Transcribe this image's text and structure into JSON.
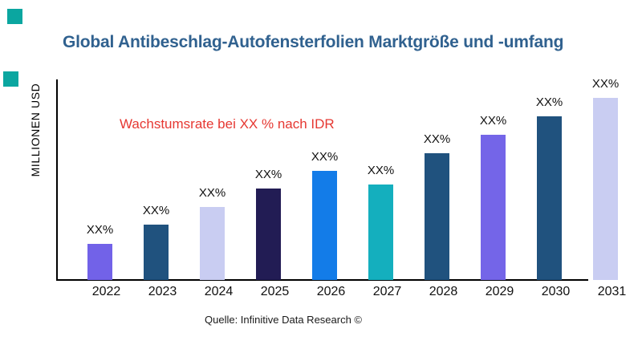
{
  "page": {
    "title": "Global Antibeschlag-Autofensterfolien Marktgröße und -umfang",
    "title_color": "#30618f",
    "annotation": "Wachstumsrate bei XX % nach IDR",
    "annotation_color": "#e63832",
    "y_axis_label": "MILLIONEN USD",
    "source": "Quelle: Infinitive Data Research ©",
    "brand_square_color": "#0ba6a0",
    "axis_color": "#000000",
    "background_color": "#ffffff"
  },
  "chart_data": {
    "type": "bar",
    "title": "Global Antibeschlag-Autofensterfolien Marktgröße und -umfang",
    "xlabel": "",
    "ylabel": "MILLIONEN USD",
    "categories": [
      "2022",
      "2023",
      "2024",
      "2025",
      "2026",
      "2027",
      "2028",
      "2029",
      "2030",
      "2031"
    ],
    "series": [
      {
        "name": "Marktgröße",
        "values": [
          45,
          69,
          91,
          114,
          136,
          119,
          158,
          181,
          204,
          227
        ],
        "value_unit": "relative-bar-height-px (numeric axis values not shown in chart)"
      }
    ],
    "data_labels": [
      "XX%",
      "XX%",
      "XX%",
      "XX%",
      "XX%",
      "XX%",
      "XX%",
      "XX%",
      "XX%",
      "XX%"
    ],
    "bar_colors": [
      "#7262e8",
      "#20527e",
      "#c9cdf2",
      "#221c54",
      "#137ce8",
      "#14afbe",
      "#20527e",
      "#7465e8",
      "#20527e",
      "#c9cdf2"
    ],
    "annotation": "Wachstumsrate bei XX % nach IDR",
    "grid": false,
    "legend": false,
    "y_axis_ticks": [],
    "source": "Quelle: Infinitive Data Research ©"
  }
}
